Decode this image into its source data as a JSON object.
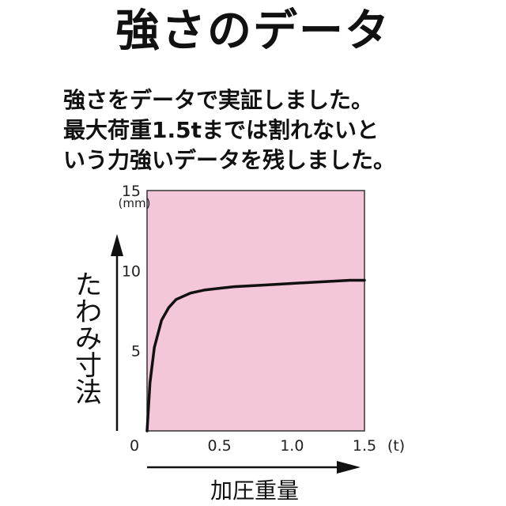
{
  "title": "強さのデータ",
  "description": [
    "強さをデータで実証しました。",
    "最大荷重1.5tまでは割れないと",
    "いう力強いデータを残しました。"
  ],
  "colors": {
    "plot_background": "#f4c6da",
    "curve": "#111111",
    "axis": "#111111"
  },
  "chart_data": {
    "type": "line",
    "xlabel": "加圧重量",
    "ylabel": "たわみ寸法",
    "x_unit": "(t)",
    "y_unit": "(mm)",
    "xlim": [
      0,
      1.5
    ],
    "ylim": [
      0,
      15
    ],
    "x_ticks": [
      "0",
      "0.5",
      "1.0",
      "1.5"
    ],
    "y_ticks": [
      "5",
      "10",
      "15"
    ],
    "grid": false,
    "series": [
      {
        "x": [
          0,
          0.02,
          0.05,
          0.1,
          0.15,
          0.2,
          0.3,
          0.4,
          0.5,
          0.6,
          0.8,
          1.0,
          1.2,
          1.4,
          1.5
        ],
        "y": [
          0,
          3.0,
          5.2,
          6.9,
          7.7,
          8.2,
          8.6,
          8.8,
          8.9,
          9.0,
          9.1,
          9.2,
          9.3,
          9.4,
          9.4
        ]
      }
    ]
  }
}
